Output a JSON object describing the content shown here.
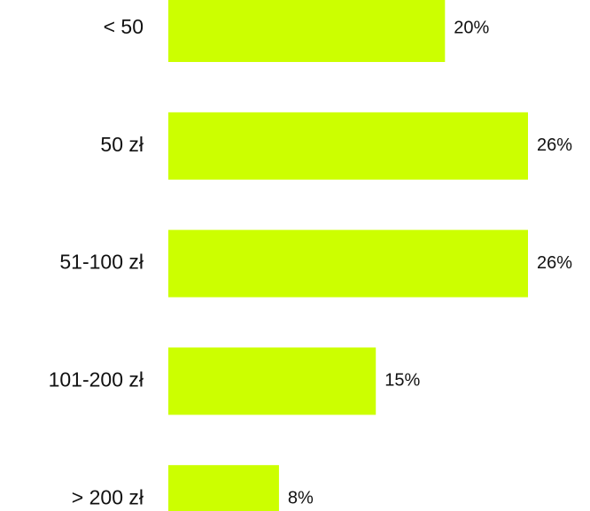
{
  "chart_data": {
    "type": "bar",
    "orientation": "horizontal",
    "categories": [
      "< 50",
      "50 zł",
      "51-100 zł",
      "101-200 zł",
      "> 200 zł"
    ],
    "values": [
      20,
      26,
      26,
      15,
      8
    ],
    "value_labels": [
      "20%",
      "26%",
      "26%",
      "15%",
      "8%"
    ],
    "color": "#ccff00"
  }
}
